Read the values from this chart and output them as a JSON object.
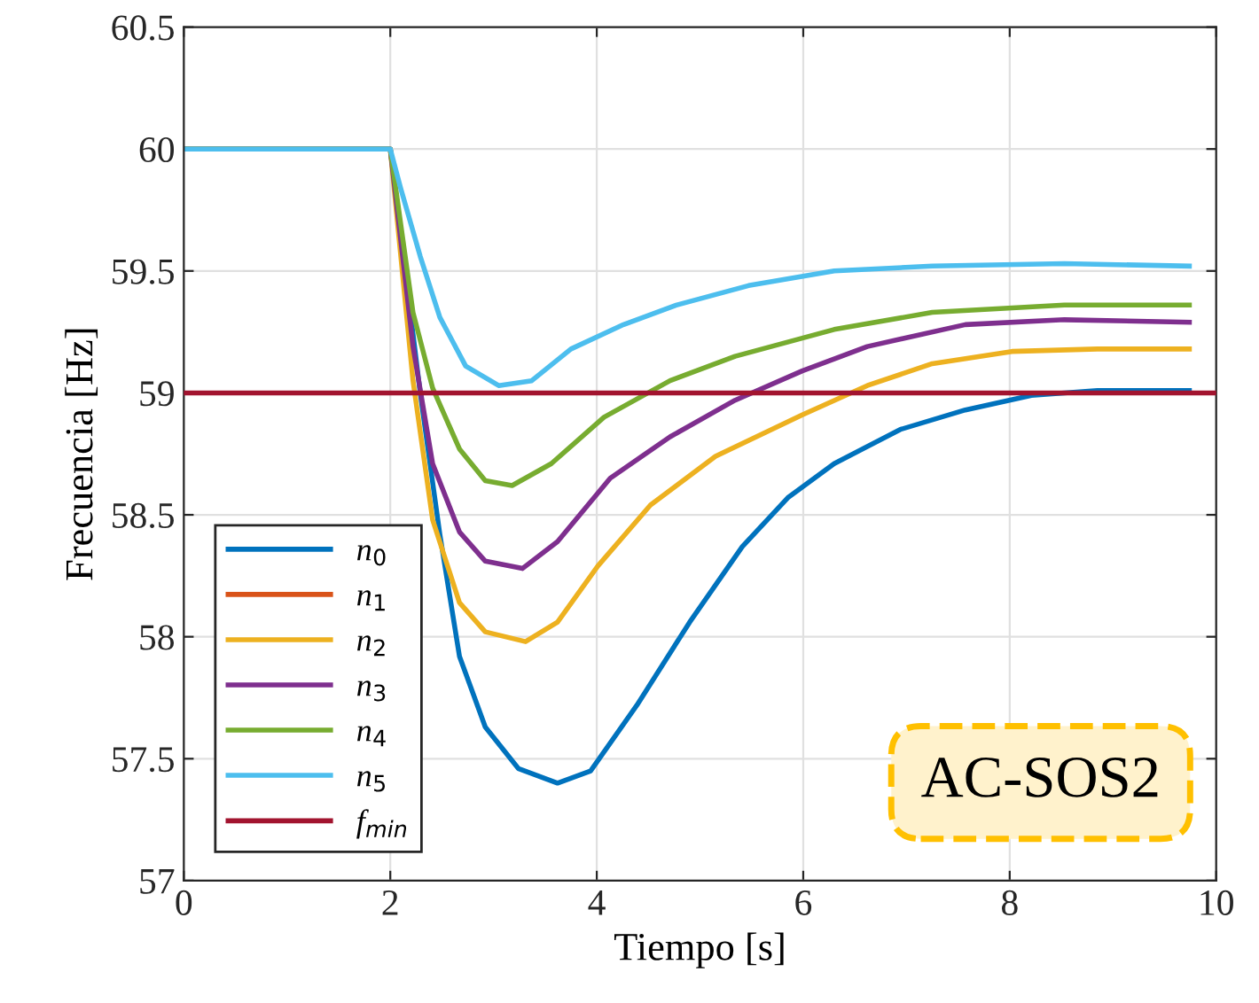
{
  "chart_data": {
    "type": "line",
    "xlabel": "Tiempo [s]",
    "ylabel": "Frecuencia [Hz]",
    "xlim": [
      0,
      10
    ],
    "xticks": [
      0,
      2,
      4,
      6,
      8,
      10
    ],
    "ylim": [
      57,
      60.5
    ],
    "yticks": [
      57,
      57.5,
      58,
      58.5,
      59,
      59.5,
      60,
      60.5
    ],
    "grid": true,
    "legend": "bottom left",
    "marker": "none",
    "line_style": "solid",
    "series": [
      {
        "name": "n$_{0}$",
        "color": "#0072bd",
        "x": [
          0,
          2,
          2.29,
          2.48,
          2.67,
          2.92,
          3.24,
          3.62,
          3.94,
          4.39,
          4.9,
          5.41,
          5.85,
          6.3,
          6.94,
          7.57,
          8.21,
          8.85,
          9.74
        ],
        "values": [
          60,
          60,
          59.0,
          58.42,
          57.92,
          57.63,
          57.46,
          57.4,
          57.45,
          57.72,
          58.06,
          58.37,
          58.57,
          58.71,
          58.85,
          58.93,
          58.99,
          59.01,
          59.01
        ]
      },
      {
        "name": "n$_{1}$",
        "color": "#d95319"
      },
      {
        "name": "n$_{2}$",
        "color": "#edb120",
        "x": [
          0,
          2,
          2.22,
          2.41,
          2.67,
          2.92,
          3.31,
          3.62,
          4.01,
          4.52,
          5.15,
          5.99,
          6.62,
          7.25,
          8.02,
          8.85,
          9.74
        ],
        "values": [
          60,
          60,
          59.05,
          58.48,
          58.14,
          58.02,
          57.98,
          58.06,
          58.29,
          58.54,
          58.74,
          58.91,
          59.03,
          59.12,
          59.17,
          59.18,
          59.18
        ]
      },
      {
        "name": "n$_{3}$",
        "color": "#7e2f8e",
        "x": [
          0,
          2,
          2.22,
          2.41,
          2.67,
          2.92,
          3.28,
          3.62,
          4.13,
          4.71,
          5.34,
          5.99,
          6.62,
          7.57,
          8.53,
          9.74
        ],
        "values": [
          60,
          60,
          59.19,
          58.71,
          58.43,
          58.31,
          58.28,
          58.39,
          58.65,
          58.82,
          58.97,
          59.09,
          59.19,
          59.28,
          59.3,
          59.29
        ]
      },
      {
        "name": "n$_{4}$",
        "color": "#77ac30",
        "x": [
          0,
          2,
          2.22,
          2.41,
          2.67,
          2.92,
          3.18,
          3.56,
          4.07,
          4.71,
          5.34,
          6.3,
          7.25,
          8.53,
          9.74
        ],
        "values": [
          60,
          60,
          59.33,
          59.02,
          58.77,
          58.64,
          58.62,
          58.71,
          58.9,
          59.05,
          59.15,
          59.26,
          59.33,
          59.36,
          59.36
        ]
      },
      {
        "name": "n$_{5}$",
        "color": "#4dbeee",
        "x": [
          0,
          2,
          2.1,
          2.29,
          2.48,
          2.73,
          3.05,
          3.37,
          3.75,
          4.26,
          4.77,
          5.47,
          6.3,
          7.25,
          8.53,
          9.74
        ],
        "values": [
          60,
          60,
          59.84,
          59.56,
          59.31,
          59.11,
          59.03,
          59.05,
          59.18,
          59.28,
          59.36,
          59.44,
          59.5,
          59.52,
          59.53,
          59.52
        ]
      }
    ],
    "ref_lines": [
      {
        "axis": "y",
        "value": 59,
        "label": "f$_{min}$",
        "color": "#a2142f",
        "line_style": "solid"
      }
    ],
    "annotations": [
      "AC-SOS2"
    ]
  }
}
